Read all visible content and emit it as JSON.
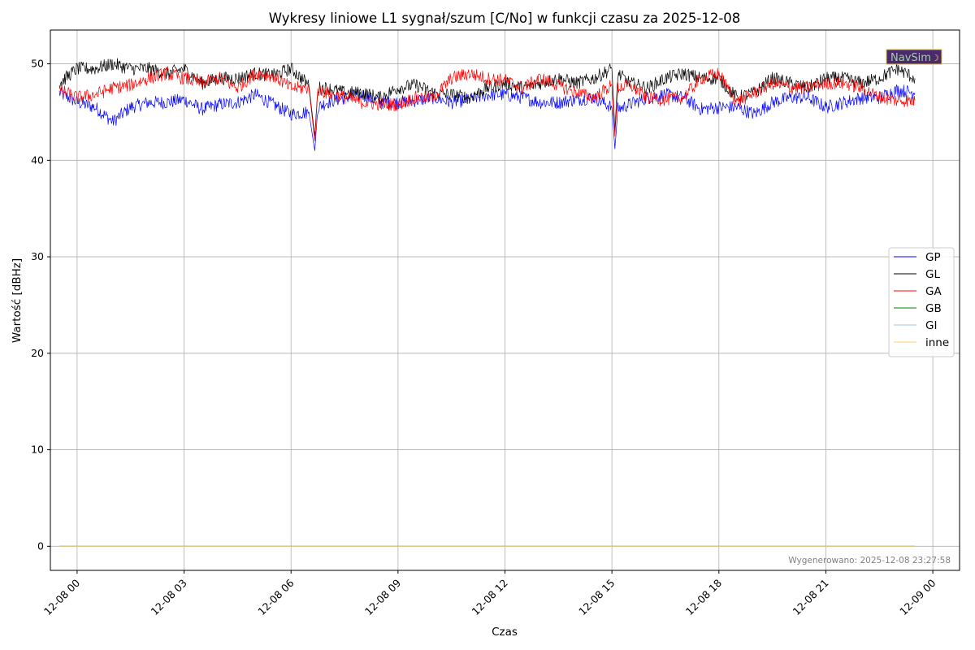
{
  "chart_data": {
    "type": "line",
    "title": "Wykresy liniowe L1 sygnał/szum [C/No] w funkcji czasu za 2025-12-08",
    "xlabel": "Czas",
    "ylabel": "Wartość [dBHz]",
    "x_range": [
      "2025-12-07 23:15",
      "2025-12-09 00:45"
    ],
    "ylim": [
      -2.5,
      53.5
    ],
    "y_ticks": [
      0,
      10,
      20,
      30,
      40,
      50
    ],
    "x_ticks": [
      {
        "t": "2025-12-08 00:00",
        "label": "12-08 00"
      },
      {
        "t": "2025-12-08 03:00",
        "label": "12-08 03"
      },
      {
        "t": "2025-12-08 06:00",
        "label": "12-08 06"
      },
      {
        "t": "2025-12-08 09:00",
        "label": "12-08 09"
      },
      {
        "t": "2025-12-08 12:00",
        "label": "12-08 12"
      },
      {
        "t": "2025-12-08 15:00",
        "label": "12-08 15"
      },
      {
        "t": "2025-12-08 18:00",
        "label": "12-08 18"
      },
      {
        "t": "2025-12-08 21:00",
        "label": "12-08 21"
      },
      {
        "t": "2025-12-09 00:00",
        "label": "12-09 00"
      }
    ],
    "grid": true,
    "legend_position": "right",
    "series": [
      {
        "name": "GP",
        "color": "#0000ff",
        "points": [
          [
            "2025-12-07 23:30",
            47
          ],
          [
            "2025-12-08 00:00",
            46
          ],
          [
            "2025-12-08 00:30",
            45.5
          ],
          [
            "2025-12-08 01:00",
            44
          ],
          [
            "2025-12-08 01:30",
            45.5
          ],
          [
            "2025-12-08 02:00",
            46
          ],
          [
            "2025-12-08 02:30",
            46
          ],
          [
            "2025-12-08 03:00",
            46.3
          ],
          [
            "2025-12-08 03:30",
            45.3
          ],
          [
            "2025-12-08 04:00",
            45.8
          ],
          [
            "2025-12-08 04:30",
            46
          ],
          [
            "2025-12-08 05:00",
            46.8
          ],
          [
            "2025-12-08 05:30",
            45.8
          ],
          [
            "2025-12-08 06:00",
            44.8
          ],
          [
            "2025-12-08 06:30",
            45
          ],
          [
            "2025-12-08 06:40",
            41
          ],
          [
            "2025-12-08 06:45",
            45.5
          ],
          [
            "2025-12-08 07:00",
            46
          ],
          [
            "2025-12-08 07:30",
            46.5
          ],
          [
            "2025-12-08 08:00",
            46.8
          ],
          [
            "2025-12-08 08:30",
            46
          ],
          [
            "2025-12-08 09:00",
            46
          ],
          [
            "2025-12-08 09:30",
            46.2
          ],
          [
            "2025-12-08 10:00",
            46.5
          ],
          [
            "2025-12-08 10:30",
            46
          ],
          [
            "2025-12-08 11:00",
            46.3
          ],
          [
            "2025-12-08 11:30",
            46.8
          ],
          [
            "2025-12-08 12:00",
            46.8
          ],
          [
            "2025-12-08 12:30",
            46.5
          ],
          [
            "2025-12-08 13:00",
            46
          ],
          [
            "2025-12-08 13:30",
            46
          ],
          [
            "2025-12-08 14:00",
            46.3
          ],
          [
            "2025-12-08 14:30",
            46.5
          ],
          [
            "2025-12-08 15:00",
            45.5
          ],
          [
            "2025-12-08 15:05",
            41.2
          ],
          [
            "2025-12-08 15:10",
            45.3
          ],
          [
            "2025-12-08 15:30",
            45.8
          ],
          [
            "2025-12-08 16:00",
            46.5
          ],
          [
            "2025-12-08 16:30",
            46.8
          ],
          [
            "2025-12-08 17:00",
            46.5
          ],
          [
            "2025-12-08 17:30",
            45.3
          ],
          [
            "2025-12-08 18:00",
            45.5
          ],
          [
            "2025-12-08 18:30",
            45.5
          ],
          [
            "2025-12-08 19:00",
            44.8
          ],
          [
            "2025-12-08 19:30",
            46
          ],
          [
            "2025-12-08 20:00",
            46.5
          ],
          [
            "2025-12-08 20:30",
            46.5
          ],
          [
            "2025-12-08 21:00",
            45.5
          ],
          [
            "2025-12-08 21:30",
            46
          ],
          [
            "2025-12-08 22:00",
            46.5
          ],
          [
            "2025-12-08 22:30",
            46.5
          ],
          [
            "2025-12-08 23:00",
            47.3
          ],
          [
            "2025-12-08 23:30",
            47
          ]
        ]
      },
      {
        "name": "GL",
        "color": "#000000",
        "points": [
          [
            "2025-12-07 23:30",
            48
          ],
          [
            "2025-12-08 00:00",
            49.5
          ],
          [
            "2025-12-08 00:30",
            49.5
          ],
          [
            "2025-12-08 01:00",
            50
          ],
          [
            "2025-12-08 01:30",
            49.5
          ],
          [
            "2025-12-08 02:00",
            49.5
          ],
          [
            "2025-12-08 02:30",
            49
          ],
          [
            "2025-12-08 03:00",
            49.5
          ],
          [
            "2025-12-08 03:30",
            48
          ],
          [
            "2025-12-08 04:00",
            48.5
          ],
          [
            "2025-12-08 04:30",
            48.5
          ],
          [
            "2025-12-08 05:00",
            49
          ],
          [
            "2025-12-08 05:30",
            48.8
          ],
          [
            "2025-12-08 06:00",
            49.5
          ],
          [
            "2025-12-08 06:30",
            47.8
          ],
          [
            "2025-12-08 06:40",
            42.5
          ],
          [
            "2025-12-08 06:45",
            47.5
          ],
          [
            "2025-12-08 07:00",
            47.5
          ],
          [
            "2025-12-08 07:30",
            47
          ],
          [
            "2025-12-08 08:00",
            47
          ],
          [
            "2025-12-08 08:30",
            46.5
          ],
          [
            "2025-12-08 09:00",
            47.5
          ],
          [
            "2025-12-08 09:30",
            47.8
          ],
          [
            "2025-12-08 10:00",
            47
          ],
          [
            "2025-12-08 10:30",
            46.8
          ],
          [
            "2025-12-08 11:00",
            46.5
          ],
          [
            "2025-12-08 11:30",
            47.5
          ],
          [
            "2025-12-08 12:00",
            48
          ],
          [
            "2025-12-08 12:30",
            47.5
          ],
          [
            "2025-12-08 13:00",
            48
          ],
          [
            "2025-12-08 13:30",
            48.5
          ],
          [
            "2025-12-08 14:00",
            48
          ],
          [
            "2025-12-08 14:30",
            48.5
          ],
          [
            "2025-12-08 15:00",
            49.5
          ],
          [
            "2025-12-08 15:05",
            43
          ],
          [
            "2025-12-08 15:10",
            49
          ],
          [
            "2025-12-08 15:30",
            48
          ],
          [
            "2025-12-08 16:00",
            47.5
          ],
          [
            "2025-12-08 16:30",
            48.5
          ],
          [
            "2025-12-08 17:00",
            49
          ],
          [
            "2025-12-08 17:30",
            48.5
          ],
          [
            "2025-12-08 18:00",
            48.5
          ],
          [
            "2025-12-08 18:30",
            46.5
          ],
          [
            "2025-12-08 19:00",
            47
          ],
          [
            "2025-12-08 19:30",
            48.5
          ],
          [
            "2025-12-08 20:00",
            48
          ],
          [
            "2025-12-08 20:30",
            47.5
          ],
          [
            "2025-12-08 21:00",
            48.5
          ],
          [
            "2025-12-08 21:30",
            48.5
          ],
          [
            "2025-12-08 22:00",
            48
          ],
          [
            "2025-12-08 22:30",
            48.5
          ],
          [
            "2025-12-08 23:00",
            49.5
          ],
          [
            "2025-12-08 23:30",
            48.5
          ]
        ]
      },
      {
        "name": "GA",
        "color": "#ff0000",
        "points": [
          [
            "2025-12-07 23:30",
            47.3
          ],
          [
            "2025-12-08 00:00",
            46.5
          ],
          [
            "2025-12-08 00:30",
            46.8
          ],
          [
            "2025-12-08 01:00",
            47.5
          ],
          [
            "2025-12-08 01:30",
            47.8
          ],
          [
            "2025-12-08 02:00",
            48.5
          ],
          [
            "2025-12-08 02:30",
            49
          ],
          [
            "2025-12-08 03:00",
            48.5
          ],
          [
            "2025-12-08 03:30",
            48
          ],
          [
            "2025-12-08 04:00",
            48.5
          ],
          [
            "2025-12-08 04:30",
            47.5
          ],
          [
            "2025-12-08 05:00",
            49
          ],
          [
            "2025-12-08 05:30",
            48.8
          ],
          [
            "2025-12-08 06:00",
            47.5
          ],
          [
            "2025-12-08 06:30",
            47.5
          ],
          [
            "2025-12-08 06:40",
            42
          ],
          [
            "2025-12-08 06:45",
            47.3
          ],
          [
            "2025-12-08 07:00",
            47
          ],
          [
            "2025-12-08 07:30",
            46.5
          ],
          [
            "2025-12-08 08:00",
            46
          ],
          [
            "2025-12-08 08:30",
            45.8
          ],
          [
            "2025-12-08 09:00",
            45.8
          ],
          [
            "2025-12-08 09:30",
            46.5
          ],
          [
            "2025-12-08 10:00",
            46.5
          ],
          [
            "2025-12-08 10:30",
            48.5
          ],
          [
            "2025-12-08 11:00",
            49
          ],
          [
            "2025-12-08 11:30",
            48.5
          ],
          [
            "2025-12-08 12:00",
            48.3
          ],
          [
            "2025-12-08 12:30",
            47.5
          ],
          [
            "2025-12-08 13:00",
            48.5
          ],
          [
            "2025-12-08 13:30",
            47.8
          ],
          [
            "2025-12-08 14:00",
            47
          ],
          [
            "2025-12-08 14:30",
            46.5
          ],
          [
            "2025-12-08 15:00",
            47.8
          ],
          [
            "2025-12-08 15:05",
            42.5
          ],
          [
            "2025-12-08 15:10",
            47.5
          ],
          [
            "2025-12-08 15:30",
            47.8
          ],
          [
            "2025-12-08 16:00",
            46.5
          ],
          [
            "2025-12-08 16:30",
            46.3
          ],
          [
            "2025-12-08 17:00",
            46.5
          ],
          [
            "2025-12-08 17:30",
            48.5
          ],
          [
            "2025-12-08 18:00",
            49
          ],
          [
            "2025-12-08 18:30",
            46
          ],
          [
            "2025-12-08 19:00",
            47
          ],
          [
            "2025-12-08 19:30",
            48
          ],
          [
            "2025-12-08 20:00",
            47.5
          ],
          [
            "2025-12-08 20:30",
            47.5
          ],
          [
            "2025-12-08 21:00",
            48
          ],
          [
            "2025-12-08 21:30",
            48
          ],
          [
            "2025-12-08 22:00",
            47.5
          ],
          [
            "2025-12-08 22:30",
            46.5
          ],
          [
            "2025-12-08 23:00",
            46.2
          ],
          [
            "2025-12-08 23:30",
            46.2
          ]
        ]
      },
      {
        "name": "GB",
        "color": "#008000",
        "points": [
          [
            "2025-12-07 23:30",
            0
          ],
          [
            "2025-12-08 23:30",
            0
          ]
        ]
      },
      {
        "name": "GI",
        "color": "#9ec3e6",
        "points": [
          [
            "2025-12-07 23:30",
            0
          ],
          [
            "2025-12-08 23:30",
            0
          ]
        ]
      },
      {
        "name": "inne",
        "color": "#ffc878",
        "points": [
          [
            "2025-12-07 23:30",
            0
          ],
          [
            "2025-12-08 23:30",
            0
          ]
        ]
      }
    ]
  },
  "footer_text": "Wygenerowano: 2025-12-08 23:27:58",
  "logo": {
    "text": "NavSim",
    "bg": "#4a2a6a"
  }
}
